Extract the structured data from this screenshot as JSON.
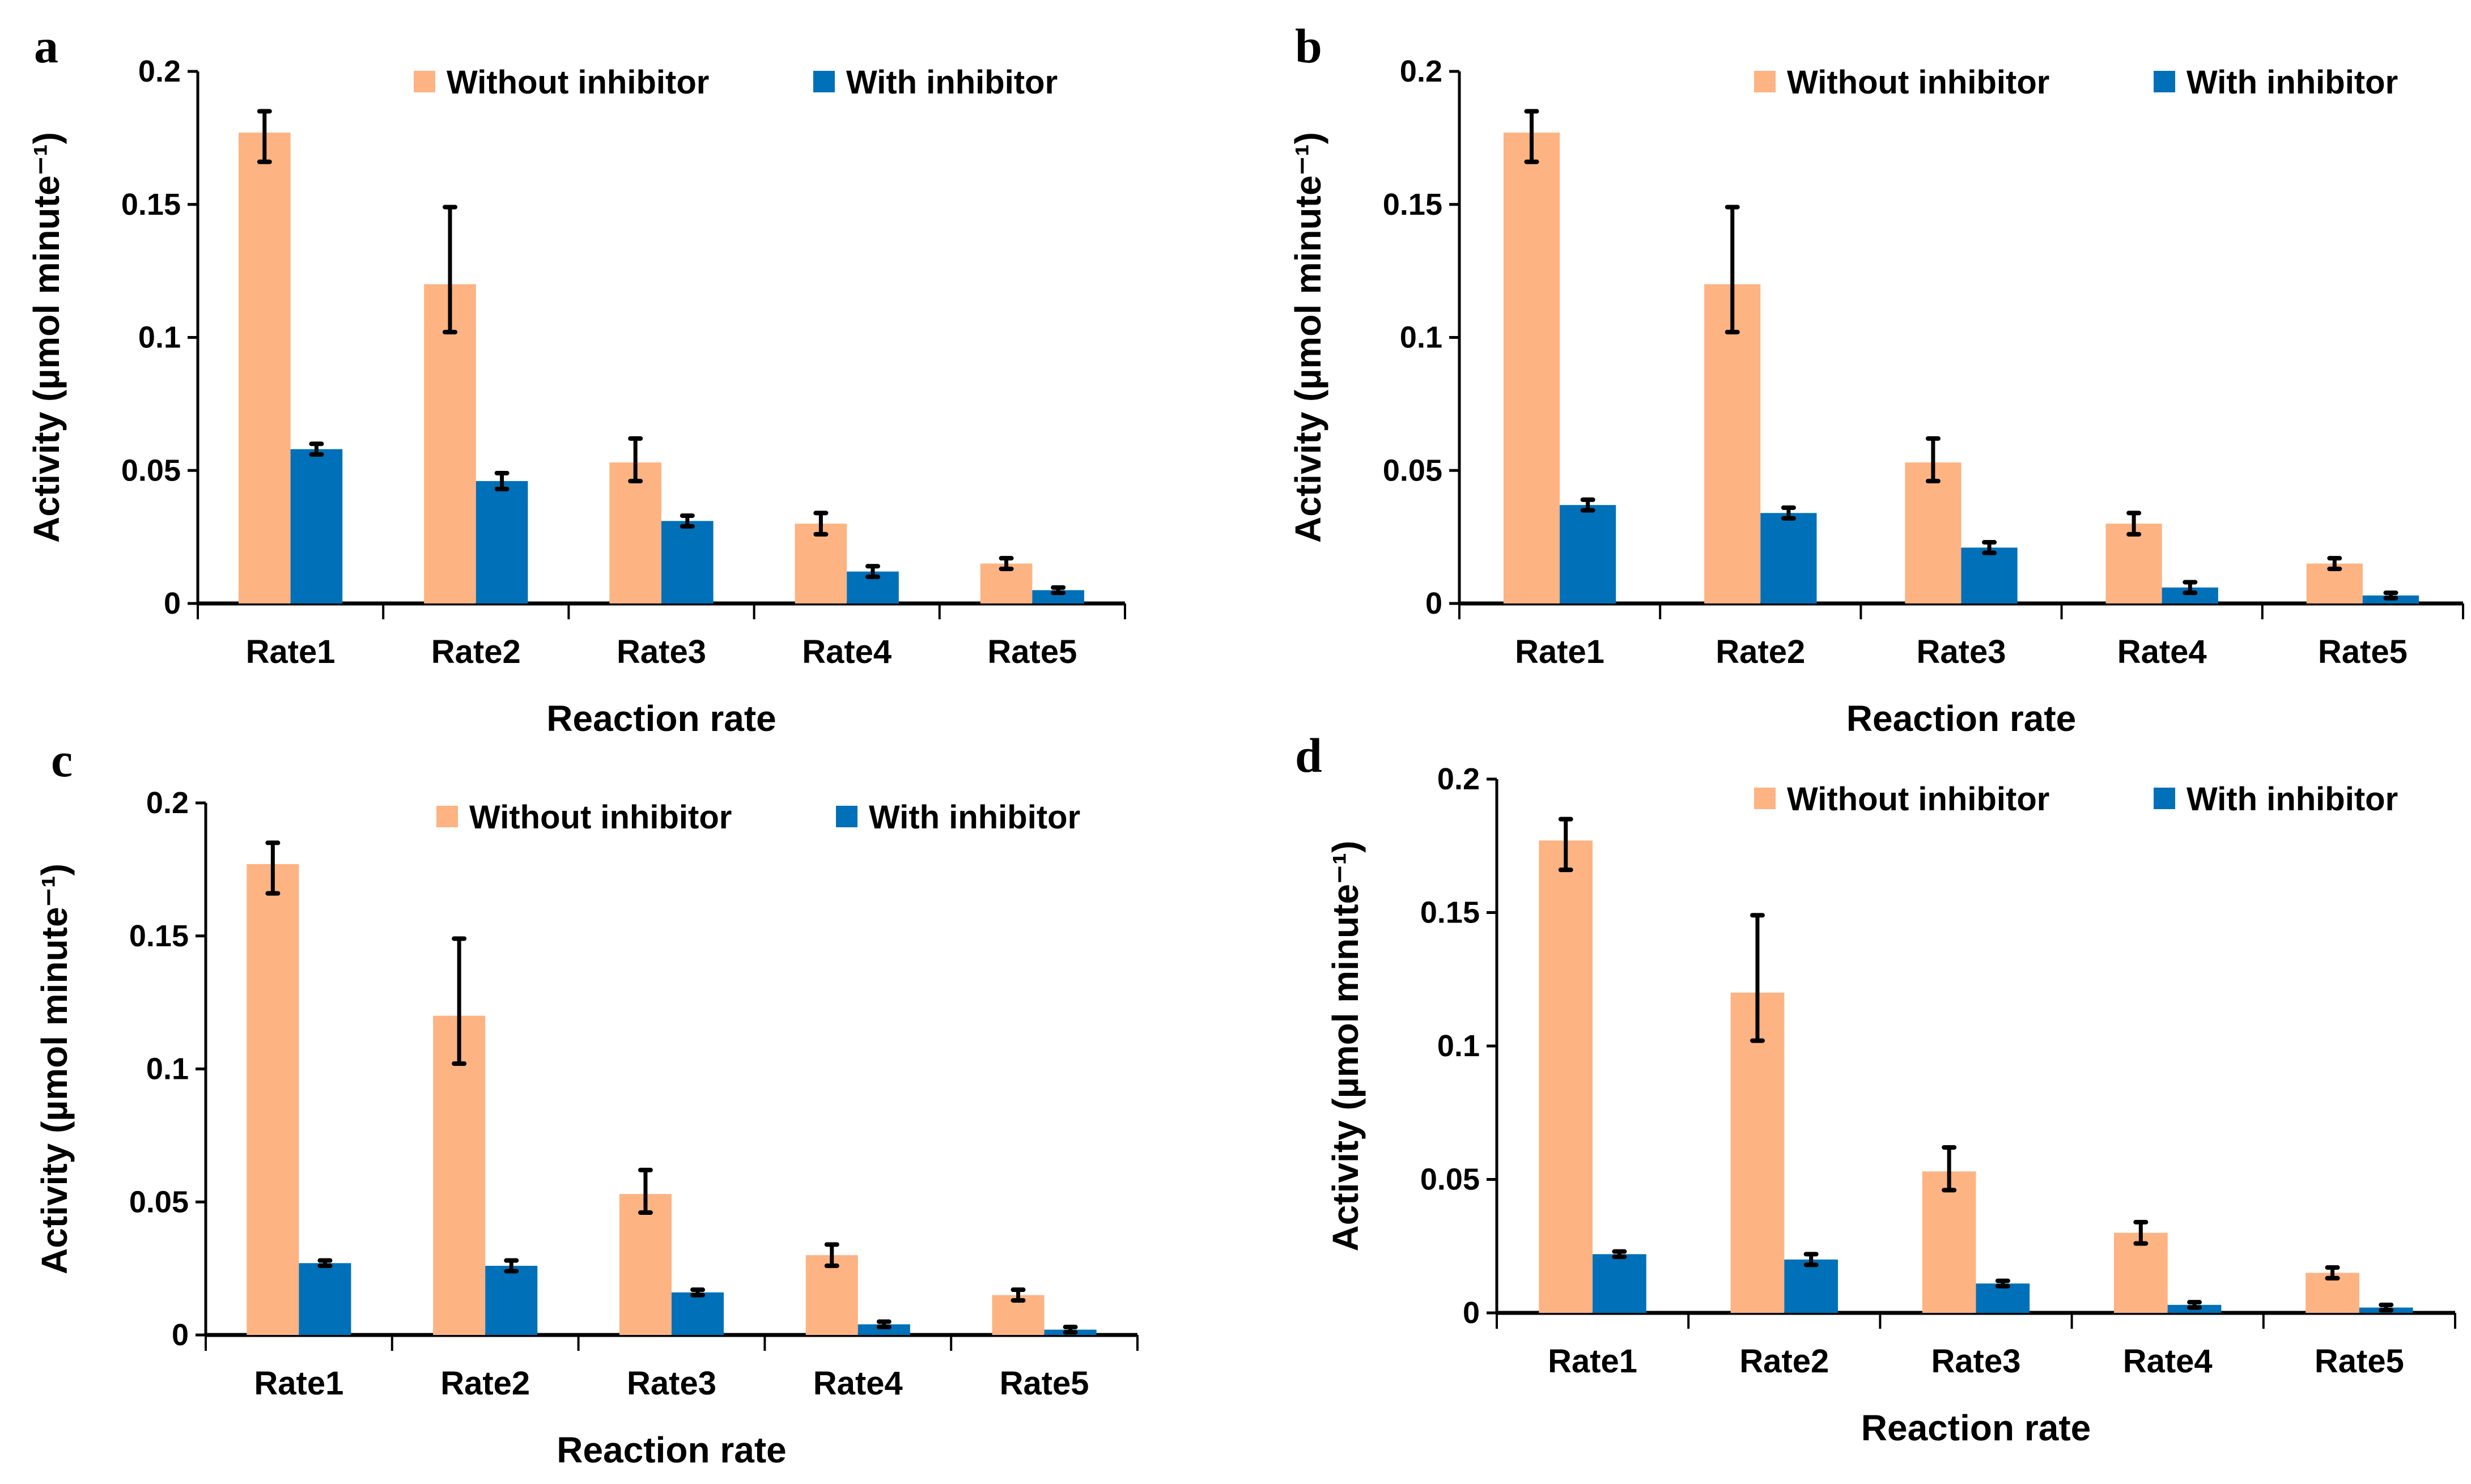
{
  "chart_data": [
    {
      "type": "bar",
      "panel_label": "a",
      "categories": [
        "Rate1",
        "Rate2",
        "Rate3",
        "Rate4",
        "Rate5"
      ],
      "xlabel": "Reaction rate",
      "ylabel": "Activity (µmol minute⁻¹)",
      "ylim": [
        0,
        0.2
      ],
      "yticks": [
        "0",
        "0.05",
        "0.1",
        "0.15",
        "0.2"
      ],
      "ytick_values": [
        0,
        0.05,
        0.1,
        0.15,
        0.2
      ],
      "legend_position": "top-right",
      "series": [
        {
          "name": "Without inhibitor",
          "color": "#FDB382",
          "values": [
            0.177,
            0.12,
            0.053,
            0.03,
            0.015
          ],
          "err": [
            [
              0.011,
              0.008
            ],
            [
              0.018,
              0.029
            ],
            [
              0.007,
              0.009
            ],
            [
              0.004,
              0.004
            ],
            [
              0.002,
              0.002
            ]
          ]
        },
        {
          "name": "With inhibitor",
          "color": "#0070B8",
          "values": [
            0.058,
            0.046,
            0.031,
            0.012,
            0.005
          ],
          "err": [
            [
              0.002,
              0.002
            ],
            [
              0.003,
              0.003
            ],
            [
              0.002,
              0.002
            ],
            [
              0.002,
              0.002
            ],
            [
              0.001,
              0.001
            ]
          ]
        }
      ]
    },
    {
      "type": "bar",
      "panel_label": "b",
      "categories": [
        "Rate1",
        "Rate2",
        "Rate3",
        "Rate4",
        "Rate5"
      ],
      "xlabel": "Reaction rate",
      "ylabel": "Activity (µmol minute⁻¹)",
      "ylim": [
        0,
        0.2
      ],
      "yticks": [
        "0",
        "0.05",
        "0.1",
        "0.15",
        "0.2"
      ],
      "ytick_values": [
        0,
        0.05,
        0.1,
        0.15,
        0.2
      ],
      "legend_position": "top-right",
      "series": [
        {
          "name": "Without inhibitor",
          "color": "#FDB382",
          "values": [
            0.177,
            0.12,
            0.053,
            0.03,
            0.015
          ],
          "err": [
            [
              0.011,
              0.008
            ],
            [
              0.018,
              0.029
            ],
            [
              0.007,
              0.009
            ],
            [
              0.004,
              0.004
            ],
            [
              0.002,
              0.002
            ]
          ]
        },
        {
          "name": "With inhibitor",
          "color": "#0070B8",
          "values": [
            0.037,
            0.034,
            0.021,
            0.006,
            0.003
          ],
          "err": [
            [
              0.002,
              0.002
            ],
            [
              0.002,
              0.002
            ],
            [
              0.002,
              0.002
            ],
            [
              0.002,
              0.002
            ],
            [
              0.001,
              0.001
            ]
          ]
        }
      ]
    },
    {
      "type": "bar",
      "panel_label": "c",
      "categories": [
        "Rate1",
        "Rate2",
        "Rate3",
        "Rate4",
        "Rate5"
      ],
      "xlabel": "Reaction rate",
      "ylabel": "Activity (µmol minute⁻¹)",
      "ylim": [
        0,
        0.2
      ],
      "yticks": [
        "0",
        "0.05",
        "0.1",
        "0.15",
        "0.2"
      ],
      "ytick_values": [
        0,
        0.05,
        0.1,
        0.15,
        0.2
      ],
      "legend_position": "top-right",
      "series": [
        {
          "name": "Without inhibitor",
          "color": "#FDB382",
          "values": [
            0.177,
            0.12,
            0.053,
            0.03,
            0.015
          ],
          "err": [
            [
              0.011,
              0.008
            ],
            [
              0.018,
              0.029
            ],
            [
              0.007,
              0.009
            ],
            [
              0.004,
              0.004
            ],
            [
              0.002,
              0.002
            ]
          ]
        },
        {
          "name": "With inhibitor",
          "color": "#0070B8",
          "values": [
            0.027,
            0.026,
            0.016,
            0.004,
            0.002
          ],
          "err": [
            [
              0.001,
              0.001
            ],
            [
              0.002,
              0.002
            ],
            [
              0.001,
              0.001
            ],
            [
              0.001,
              0.001
            ],
            [
              0.001,
              0.001
            ]
          ]
        }
      ]
    },
    {
      "type": "bar",
      "panel_label": "d",
      "categories": [
        "Rate1",
        "Rate2",
        "Rate3",
        "Rate4",
        "Rate5"
      ],
      "xlabel": "Reaction rate",
      "ylabel": "Activity (µmol minute⁻¹)",
      "ylim": [
        0,
        0.2
      ],
      "yticks": [
        "0",
        "0.05",
        "0.1",
        "0.15",
        "0.2"
      ],
      "ytick_values": [
        0,
        0.05,
        0.1,
        0.15,
        0.2
      ],
      "legend_position": "top-right",
      "series": [
        {
          "name": "Without inhibitor",
          "color": "#FDB382",
          "values": [
            0.177,
            0.12,
            0.053,
            0.03,
            0.015
          ],
          "err": [
            [
              0.011,
              0.008
            ],
            [
              0.018,
              0.029
            ],
            [
              0.007,
              0.009
            ],
            [
              0.004,
              0.004
            ],
            [
              0.002,
              0.002
            ]
          ]
        },
        {
          "name": "With inhibitor",
          "color": "#0070B8",
          "values": [
            0.022,
            0.02,
            0.011,
            0.003,
            0.002
          ],
          "err": [
            [
              0.001,
              0.001
            ],
            [
              0.002,
              0.002
            ],
            [
              0.001,
              0.001
            ],
            [
              0.001,
              0.001
            ],
            [
              0.001,
              0.001
            ]
          ]
        }
      ]
    }
  ]
}
